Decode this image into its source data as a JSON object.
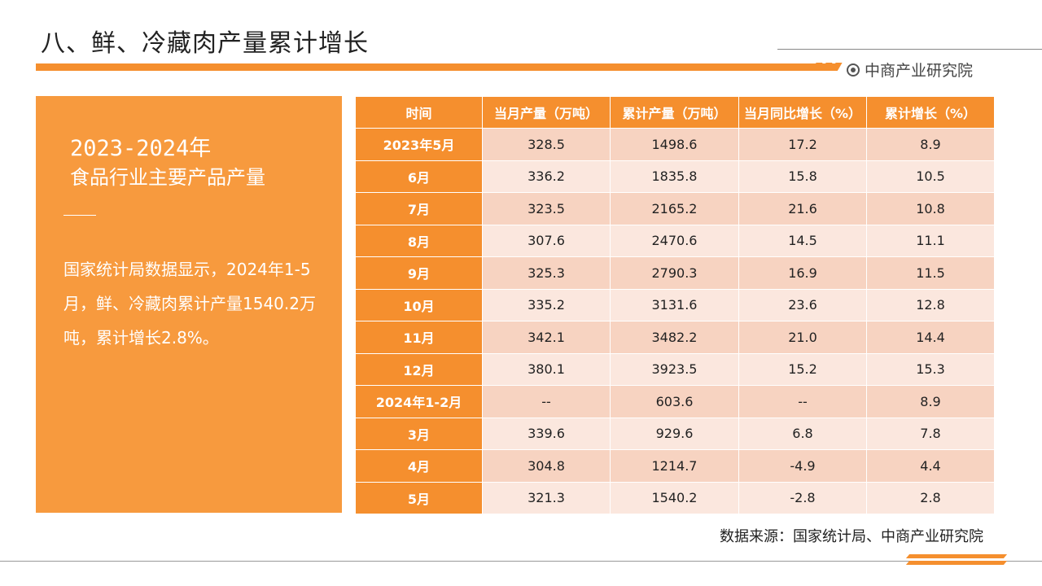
{
  "header": {
    "title": "八、鲜、冷藏肉产量累计增长",
    "brand": "中商产业研究院"
  },
  "summary": {
    "year_range": "2023-2024年",
    "subtitle": "食品行业主要产品产量",
    "body": "国家统计局数据显示，2024年1-5月，鲜、冷藏肉累计产量1540.2万吨，累计增长2.8%。"
  },
  "table": {
    "headers": [
      "时间",
      "当月产量（万吨）",
      "累计产量（万吨）",
      "当月同比增长（%）",
      "累计增长（%）"
    ],
    "rows": [
      [
        "2023年5月",
        "328.5",
        "1498.6",
        "17.2",
        "8.9"
      ],
      [
        "6月",
        "336.2",
        "1835.8",
        "15.8",
        "10.5"
      ],
      [
        "7月",
        "323.5",
        "2165.2",
        "21.6",
        "10.8"
      ],
      [
        "8月",
        "307.6",
        "2470.6",
        "14.5",
        "11.1"
      ],
      [
        "9月",
        "325.3",
        "2790.3",
        "16.9",
        "11.5"
      ],
      [
        "10月",
        "335.2",
        "3131.6",
        "23.6",
        "12.8"
      ],
      [
        "11月",
        "342.1",
        "3482.2",
        "21.0",
        "14.4"
      ],
      [
        "12月",
        "380.1",
        "3923.5",
        "15.2",
        "15.3"
      ],
      [
        "2024年1-2月",
        "--",
        "603.6",
        "--",
        "8.9"
      ],
      [
        "3月",
        "339.6",
        "929.6",
        "6.8",
        "7.8"
      ],
      [
        "4月",
        "304.8",
        "1214.7",
        "-4.9",
        "4.4"
      ],
      [
        "5月",
        "321.3",
        "1540.2",
        "-2.8",
        "2.8"
      ]
    ]
  },
  "footer": {
    "source": "数据来源：国家统计局、中商产业研究院"
  },
  "colors": {
    "accent": "#f58f2e",
    "panel": "#f79a3e",
    "row_dark": "#f7d3c1",
    "row_light": "#fbe7de"
  }
}
